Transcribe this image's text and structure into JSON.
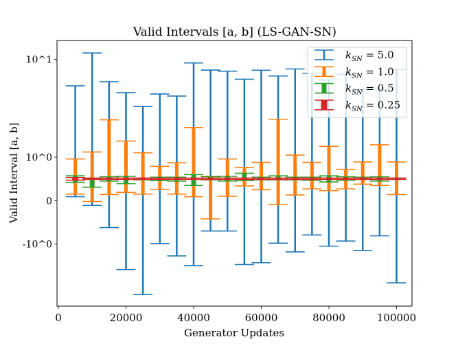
{
  "chart_data": {
    "type": "errorbar",
    "title": "Valid Intervals [a, b] (LS-GAN-SN)",
    "xlabel": "Generator Updates",
    "ylabel": "Valid Interval [a, b]",
    "xlim": [
      0,
      105000
    ],
    "ylim": [
      -4.3,
      15.6
    ],
    "yscale": "symlog",
    "linthresh": 1,
    "xticks": [
      0,
      20000,
      40000,
      60000,
      80000,
      100000
    ],
    "xtick_labels": [
      "0",
      "20000",
      "40000",
      "60000",
      "80000",
      "100000"
    ],
    "yticks": [
      10,
      1,
      0,
      -1
    ],
    "ytick_labels": [
      "10^1",
      "10^0",
      "0",
      "-10^0"
    ],
    "grid": false,
    "legend_position": "top-right",
    "x": [
      5000,
      10000,
      15000,
      20000,
      25000,
      30000,
      35000,
      40000,
      45000,
      50000,
      55000,
      60000,
      65000,
      70000,
      75000,
      80000,
      85000,
      90000,
      95000,
      100000
    ],
    "series": [
      {
        "name": "k_SN = 5.0",
        "color": "#1f77b4",
        "lower": [
          0.09,
          -0.11,
          -0.62,
          -1.82,
          -3.27,
          -0.99,
          -1.32,
          -1.66,
          -0.7,
          -0.7,
          -1.62,
          -1.55,
          -0.98,
          -1.2,
          -0.79,
          -1.05,
          -0.93,
          -1.16,
          -0.81,
          -2.49
        ],
        "upper": [
          5.36,
          11.6,
          5.9,
          4.56,
          3.3,
          4.42,
          4.21,
          9.18,
          7.77,
          7.57,
          6.26,
          7.73,
          6.76,
          7.98,
          7.2,
          6.16,
          7.05,
          4.93,
          4.93,
          7.84
        ]
      },
      {
        "name": "k_SN = 1.0",
        "color": "#ff7f0e",
        "lower": [
          0.15,
          -0.02,
          0.14,
          0.19,
          0.15,
          0.26,
          0.15,
          0.09,
          -0.42,
          0.1,
          0.34,
          0.25,
          -0.09,
          0.13,
          0.27,
          0.23,
          0.27,
          0.38,
          0.35,
          0.14
        ],
        "upper": [
          0.96,
          1.13,
          2.41,
          1.46,
          1.11,
          0.79,
          0.87,
          2.01,
          0.56,
          0.96,
          0.76,
          0.88,
          2.44,
          1.05,
          0.88,
          1.29,
          0.72,
          0.89,
          1.34,
          0.89
        ]
      },
      {
        "name": "k_SN = 0.5",
        "color": "#2ca02c",
        "lower": [
          0.42,
          0.31,
          0.45,
          0.39,
          0.48,
          0.46,
          0.45,
          0.35,
          0.48,
          0.45,
          0.46,
          0.48,
          0.48,
          0.48,
          0.47,
          0.43,
          0.47,
          0.49,
          0.45,
          0.49
        ],
        "upper": [
          0.57,
          0.51,
          0.55,
          0.56,
          0.52,
          0.54,
          0.54,
          0.6,
          0.55,
          0.56,
          0.63,
          0.54,
          0.57,
          0.54,
          0.54,
          0.57,
          0.55,
          0.54,
          0.55,
          0.52
        ]
      },
      {
        "name": "k_SN = 0.25",
        "color": "#d62728",
        "lower": [
          0.47,
          0.49,
          0.49,
          0.49,
          0.49,
          0.49,
          0.49,
          0.49,
          0.49,
          0.49,
          0.49,
          0.49,
          0.49,
          0.49,
          0.49,
          0.49,
          0.49,
          0.49,
          0.49,
          0.49
        ],
        "upper": [
          0.53,
          0.52,
          0.52,
          0.52,
          0.52,
          0.52,
          0.52,
          0.52,
          0.52,
          0.52,
          0.52,
          0.52,
          0.52,
          0.52,
          0.52,
          0.52,
          0.52,
          0.52,
          0.52,
          0.52
        ]
      }
    ]
  }
}
